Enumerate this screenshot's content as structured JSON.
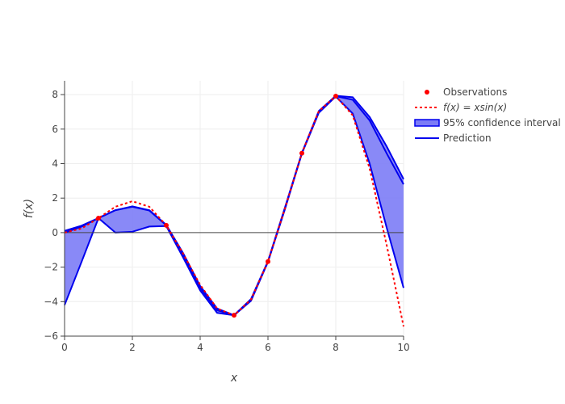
{
  "chart_data": {
    "type": "line",
    "title": "",
    "xlabel": "x",
    "ylabel": "f(x)",
    "xlim": [
      0,
      10
    ],
    "ylim": [
      -6,
      8.8
    ],
    "x_ticks": [
      0,
      2,
      4,
      6,
      8,
      10
    ],
    "y_ticks": [
      -6,
      -4,
      -2,
      0,
      2,
      4,
      6,
      8
    ],
    "x_tick_labels": [
      "0",
      "2",
      "4",
      "6",
      "8",
      "10"
    ],
    "y_tick_labels": [
      "−6",
      "−4",
      "−2",
      "0",
      "2",
      "4",
      "6",
      "8"
    ],
    "grid": true,
    "legend_position": "top-right",
    "legend": [
      {
        "key": "observations",
        "label": "Observations"
      },
      {
        "key": "truth",
        "label": "f(x) = xsin(x)"
      },
      {
        "key": "band",
        "label": "95% confidence interval"
      },
      {
        "key": "prediction",
        "label": "Prediction"
      }
    ],
    "series": [
      {
        "name": "Observations",
        "kind": "scatter",
        "x": [
          1,
          3,
          5,
          6,
          7,
          8
        ],
        "y": [
          0.84,
          0.42,
          -4.79,
          -1.68,
          4.6,
          7.91
        ]
      },
      {
        "name": "f(x) = xsin(x)",
        "kind": "line",
        "x": [
          0,
          0.5,
          1,
          1.5,
          2,
          2.5,
          3,
          3.5,
          4,
          4.5,
          5,
          5.5,
          6,
          6.5,
          7,
          7.5,
          8,
          8.5,
          9,
          9.5,
          10
        ],
        "y": [
          0,
          0.24,
          0.84,
          1.5,
          1.82,
          1.5,
          0.42,
          -1.23,
          -3.03,
          -4.4,
          -4.79,
          -3.88,
          -1.68,
          1.39,
          4.6,
          7.04,
          7.91,
          6.8,
          3.71,
          -0.71,
          -5.44
        ]
      },
      {
        "name": "Prediction",
        "kind": "line",
        "x": [
          0,
          0.5,
          1,
          1.5,
          2,
          2.5,
          3,
          3.5,
          4,
          4.5,
          5,
          5.5,
          6,
          6.5,
          7,
          7.5,
          8,
          8.5,
          9,
          9.5,
          10
        ],
        "y": [
          0,
          0.35,
          0.84,
          1.3,
          1.5,
          1.28,
          0.42,
          -1.3,
          -3.2,
          -4.5,
          -4.79,
          -3.9,
          -1.68,
          1.4,
          4.6,
          7.0,
          7.91,
          7.7,
          6.5,
          4.6,
          2.8
        ]
      },
      {
        "name": "95% confidence interval",
        "kind": "band",
        "x": [
          0,
          0.5,
          1,
          1.5,
          2,
          2.5,
          3,
          3.5,
          4,
          4.5,
          5,
          5.5,
          6,
          6.5,
          7,
          7.5,
          8,
          8.5,
          9,
          9.5,
          10
        ],
        "upper": [
          0.1,
          0.4,
          0.84,
          1.3,
          1.52,
          1.3,
          0.45,
          -1.2,
          -3.1,
          -4.4,
          -4.79,
          -3.85,
          -1.65,
          1.45,
          4.62,
          7.05,
          7.93,
          7.85,
          6.7,
          5.0,
          3.1
        ],
        "lower": [
          -4.2,
          -1.7,
          0.84,
          0.0,
          0.05,
          0.35,
          0.38,
          -1.45,
          -3.35,
          -4.65,
          -4.79,
          -3.95,
          -1.7,
          1.35,
          4.58,
          6.95,
          7.89,
          6.9,
          4.0,
          0.3,
          -3.2
        ]
      }
    ],
    "colors": {
      "observations": "#ff0000",
      "truth": "#ff0000",
      "prediction": "#0000ee",
      "band_fill": "#7c7cf6",
      "zero_line": "#444444",
      "grid": "#eeeeee",
      "axis": "#444444"
    }
  }
}
